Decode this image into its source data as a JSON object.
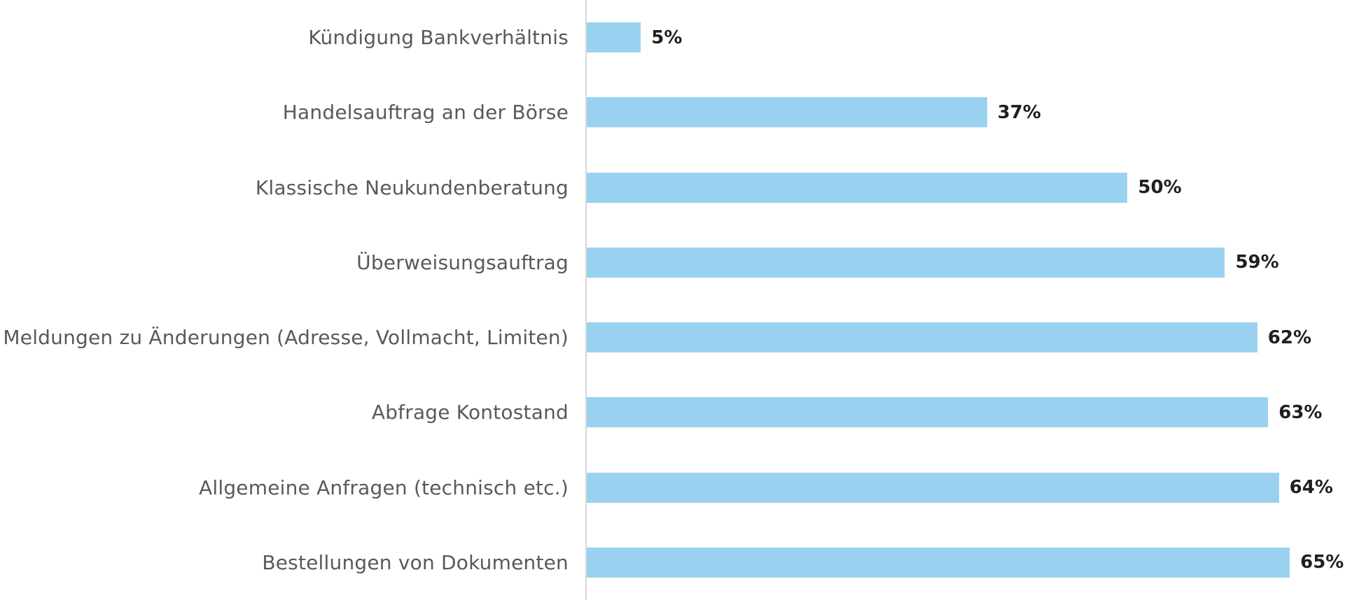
{
  "chart_data": {
    "type": "bar",
    "orientation": "horizontal",
    "title": "",
    "xlabel": "",
    "ylabel": "",
    "grid": false,
    "legend": false,
    "xlim": [
      0,
      71.4
    ],
    "categories": [
      "Kündigung Bankverhältnis",
      "Handelsauftrag an der Börse",
      "Klassische Neukundenberatung",
      "Überweisungsauftrag",
      "Meldungen zu Änderungen (Adresse, Vollmacht, Limiten)",
      "Abfrage Kontostand",
      "Allgemeine Anfragen (technisch etc.)",
      "Bestellungen von Dokumenten"
    ],
    "values": [
      5,
      37,
      50,
      59,
      62,
      63,
      64,
      65
    ],
    "value_labels": [
      "5%",
      "37%",
      "50%",
      "59%",
      "62%",
      "63%",
      "64%",
      "65%"
    ],
    "colors": {
      "bar": "#9AD1F0",
      "axis_line": "#D9D9D9",
      "category_label": "#595959",
      "value_label": "#1F1F1F",
      "background": "#FFFFFF"
    }
  }
}
